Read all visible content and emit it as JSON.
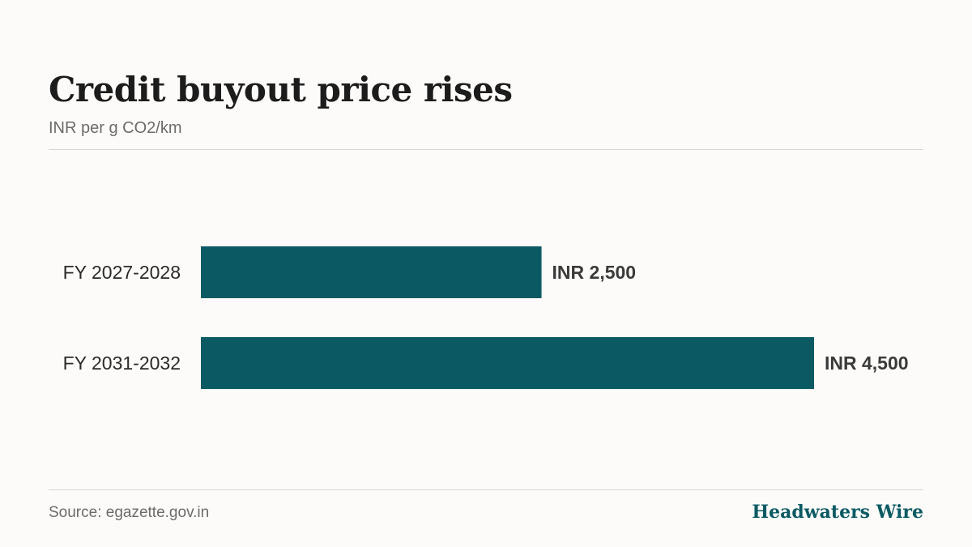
{
  "header": {
    "title": "Credit buyout price rises",
    "subtitle": "INR per g CO2/km"
  },
  "footer": {
    "source": "Source: egazette.gov.in",
    "brand": "Headwaters Wire"
  },
  "colors": {
    "bar": "#0b5a63",
    "brand": "#0b5a63"
  },
  "chart_data": {
    "type": "bar",
    "orientation": "horizontal",
    "categories": [
      "FY 2027-2028",
      "FY 2031-2032"
    ],
    "values": [
      2500,
      4500
    ],
    "value_labels": [
      "INR 2,500",
      "INR 4,500"
    ],
    "title": "Credit buyout price rises",
    "subtitle": "INR per g CO2/km",
    "xlabel": "",
    "ylabel": "",
    "xlim": [
      0,
      4500
    ],
    "grid": false,
    "legend": "none"
  }
}
